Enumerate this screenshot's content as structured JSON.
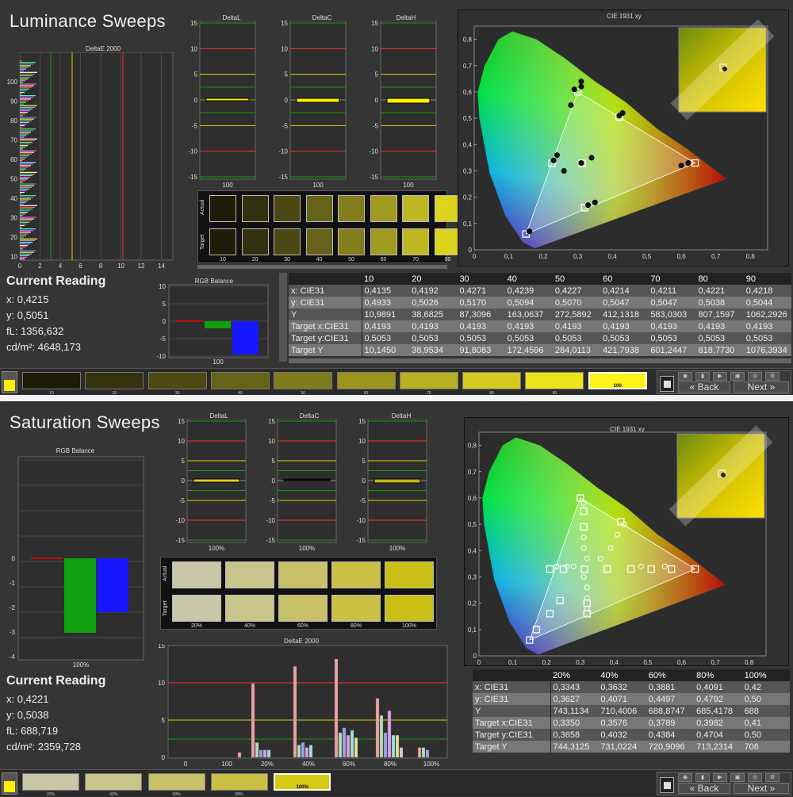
{
  "luminance": {
    "title": "Luminance Sweeps",
    "deltae_title": "DeltaE 2000",
    "deltae_yticks": [
      "100",
      "90",
      "80",
      "70",
      "60",
      "50",
      "40",
      "30",
      "20",
      "10"
    ],
    "deltae_xticks": [
      "0",
      "2",
      "4",
      "6",
      "8",
      "10",
      "12",
      "14"
    ],
    "deltaL_title": "DeltaL",
    "deltaC_title": "DeltaC",
    "deltaH_title": "DeltaH",
    "delta_ticks": [
      "15",
      "10",
      "5",
      "0",
      "-5",
      "-10",
      "-15"
    ],
    "delta_xlabel": "100",
    "swatch_row_actual": "Actual",
    "swatch_row_target": "Target",
    "swatch_labels": [
      "10",
      "20",
      "30",
      "40",
      "50",
      "60",
      "70",
      "80"
    ],
    "swatch_colors": [
      "#1f1d08",
      "#333010",
      "#4b4814",
      "#67621a",
      "#837d1e",
      "#a09a20",
      "#bfb822",
      "#dcd31e"
    ],
    "rgb_title": "RGB Balance",
    "rgb_ticks": [
      "10",
      "5",
      "0",
      "-5",
      "-10"
    ],
    "rgb_xlabel": "100",
    "reading": {
      "heading": "Current Reading",
      "x": "x: 0,4215",
      "y": "y: 0,5051",
      "fl": "fL: 1356,632",
      "cdm": "cd/m²: 4648,173"
    },
    "cie_title": "CIE 1931 xy",
    "cie_yticks": [
      "0,8",
      "0,7",
      "0,6",
      "0,5",
      "0,4",
      "0,3",
      "0,2",
      "0,1",
      "0"
    ],
    "cie_xticks": [
      "0",
      "0,1",
      "0,2",
      "0,3",
      "0,4",
      "0,5",
      "0,6",
      "0,7",
      "0,8"
    ],
    "table_headers": [
      "",
      "10",
      "20",
      "30",
      "40",
      "50",
      "60",
      "70",
      "80",
      "90"
    ],
    "table_rows": [
      [
        "x: CIE31",
        "0,4135",
        "0,4192",
        "0,4271",
        "0,4239",
        "0,4227",
        "0,4214",
        "0,4211",
        "0,4221",
        "0,4218"
      ],
      [
        "y: CIE31",
        "0,4933",
        "0,5026",
        "0,5170",
        "0,5094",
        "0,5070",
        "0,5047",
        "0,5047",
        "0,5038",
        "0,5044"
      ],
      [
        "Y",
        "10,9891",
        "38,6825",
        "87,3096",
        "163,0637",
        "272,5892",
        "412,1318",
        "583,0303",
        "807,1597",
        "1062,2926"
      ],
      [
        "Target x:CIE31",
        "0,4193",
        "0,4193",
        "0,4193",
        "0,4193",
        "0,4193",
        "0,4193",
        "0,4193",
        "0,4193",
        "0,4193"
      ],
      [
        "Target y:CIE31",
        "0,5053",
        "0,5053",
        "0,5053",
        "0,5053",
        "0,5053",
        "0,5053",
        "0,5053",
        "0,5053",
        "0,5053"
      ],
      [
        "Target Y",
        "10,1450",
        "38,9534",
        "91,8083",
        "172,4596",
        "284,0113",
        "421,7938",
        "601,2447",
        "818,7730",
        "1076,3934"
      ]
    ],
    "strip_labels": [
      "10",
      "20",
      "30",
      "40",
      "50",
      "60",
      "70",
      "80",
      "90",
      "100"
    ],
    "strip_colors": [
      "#1e1c06",
      "#353210",
      "#4d4a12",
      "#666218",
      "#7f7a1c",
      "#9b951e",
      "#b6b020",
      "#d2cb1e",
      "#ece41a",
      "#fff41a"
    ],
    "nav": {
      "back": "Back",
      "next": "Next"
    }
  },
  "saturation": {
    "title": "Saturation Sweeps",
    "rgb_title": "RGB Balance",
    "rgb_ticks": [
      "0",
      "-1",
      "-2",
      "-3",
      "-4"
    ],
    "rgb_xlabel": "100%",
    "deltaL_title": "DeltaL",
    "deltaC_title": "DeltaC",
    "deltaH_title": "DeltaH",
    "delta_ticks": [
      "15",
      "10",
      "5",
      "0",
      "-5",
      "-10",
      "-15"
    ],
    "delta_xlabel": "100%",
    "swatch_row_actual": "Actual",
    "swatch_row_target": "Target",
    "swatch_labels": [
      "20%",
      "40%",
      "60%",
      "80%",
      "100%"
    ],
    "swatch_colors": [
      "#c8c6a6",
      "#c9c48a",
      "#c8c16a",
      "#c9c045",
      "#c9bf16"
    ],
    "deltae_title": "DeltaE 2000",
    "deltae_yticks": [
      "15",
      "10",
      "5",
      "0"
    ],
    "deltae_xticks": [
      "0",
      "100",
      "20%",
      "40%",
      "60%",
      "80%",
      "100%"
    ],
    "reading": {
      "heading": "Current Reading",
      "x": "x: 0,4221",
      "y": "y: 0,5038",
      "fl": "fL: 688,719",
      "cdm": "cd/m²: 2359,728"
    },
    "cie_title": "CIE 1931 xy",
    "cie_yticks": [
      "0,8",
      "0,7",
      "0,6",
      "0,5",
      "0,4",
      "0,3",
      "0,2",
      "0,1",
      "0"
    ],
    "cie_xticks": [
      "0",
      "0,1",
      "0,2",
      "0,3",
      "0,4",
      "0,5",
      "0,6",
      "0,7",
      "0,8"
    ],
    "table_headers": [
      "",
      "20%",
      "40%",
      "60%",
      "80%",
      "100%"
    ],
    "table_rows": [
      [
        "x: CIE31",
        "0,3343",
        "0,3632",
        "0,3881",
        "0,4091",
        "0,42"
      ],
      [
        "y: CIE31",
        "0,3627",
        "0,4071",
        "0,4497",
        "0,4792",
        "0,50"
      ],
      [
        "Y",
        "743,1134",
        "710,4006",
        "688,8747",
        "685,4178",
        "688"
      ],
      [
        "Target x:CIE31",
        "0,3350",
        "0,3576",
        "0,3789",
        "0,3982",
        "0,41"
      ],
      [
        "Target y:CIE31",
        "0,3658",
        "0,4032",
        "0,4384",
        "0,4704",
        "0,50"
      ],
      [
        "Target Y",
        "744,3125",
        "731,0224",
        "720,9096",
        "713,2314",
        "706"
      ]
    ],
    "strip_labels": [
      "20%",
      "40%",
      "60%",
      "80%",
      "100%"
    ],
    "strip_colors": [
      "#c8c6a6",
      "#c9c48a",
      "#c8c16a",
      "#c9c045",
      "#d6cc12"
    ],
    "nav": {
      "back": "Back",
      "next": "Next"
    }
  },
  "colors": {
    "red": "#ff3030",
    "green": "#10a010",
    "blue": "#1818ff",
    "yellow": "#ffee00",
    "grid": "#4a4a4a"
  },
  "chart_data": [
    {
      "type": "bar",
      "title": "RGB Balance",
      "categories": [
        "100"
      ],
      "series": [
        {
          "values": [
            -0.2
          ]
        },
        {
          "values": [
            -2
          ]
        },
        {
          "values": [
            -9
          ]
        }
      ],
      "ylim": [
        -10,
        10
      ]
    },
    {
      "type": "bar",
      "title": "RGB Balance",
      "categories": [
        "100%"
      ],
      "series": [
        {
          "values": [
            -0.05
          ]
        },
        {
          "values": [
            -3
          ]
        },
        {
          "values": [
            -2.2
          ]
        }
      ],
      "ylim": [
        -4,
        0
      ]
    }
  ]
}
